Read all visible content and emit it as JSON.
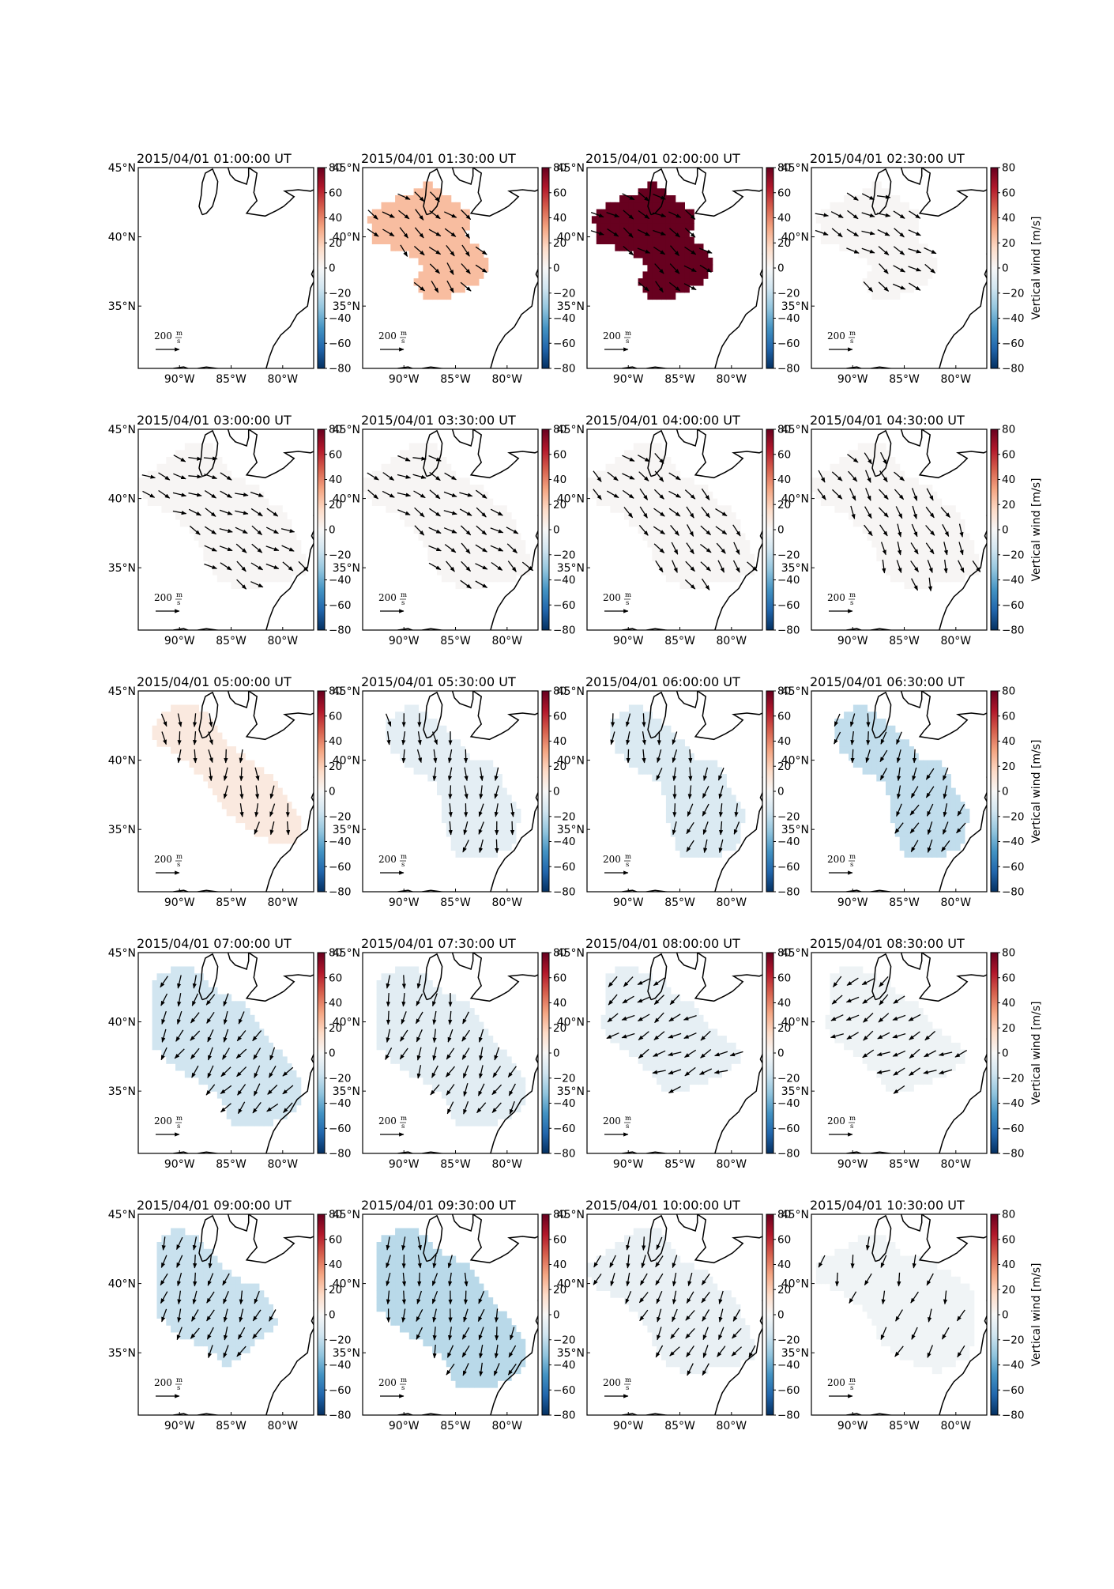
{
  "figure": {
    "lat_ticks": [
      "45°N",
      "40°N",
      "35°N"
    ],
    "lon_ticks": [
      "90°W",
      "85°W",
      "80°W"
    ],
    "colorbar_ticks": [
      "80",
      "60",
      "40",
      "20",
      "0",
      "−20",
      "−40",
      "−60",
      "−80"
    ],
    "colorbar_label": "Vertical wind [m/s]",
    "scale_label_num": "200",
    "scale_label_unit_top": "m",
    "scale_label_unit_bottom": "s",
    "colormap": [
      "#67001f",
      "#b2182b",
      "#d6604d",
      "#f4a582",
      "#fddbc7",
      "#f7f7f7",
      "#d1e5f0",
      "#92c5de",
      "#4393c3",
      "#2166ac",
      "#053061"
    ]
  },
  "chart_data": {
    "type": "map",
    "map_extent": {
      "lon": [
        -94,
        -77
      ],
      "lat": [
        30.5,
        45
      ]
    },
    "colorbar_range": [
      -80,
      80
    ],
    "panels": [
      {
        "title": "2015/04/01 01:00:00 UT",
        "field_value": null,
        "wind_dir": 0,
        "region": "none"
      },
      {
        "title": "2015/04/01 01:30:00 UT",
        "field_value": 25,
        "wind_dir": 45,
        "region": "early"
      },
      {
        "title": "2015/04/01 02:00:00 UT",
        "field_value": 85,
        "wind_dir": 35,
        "region": "early"
      },
      {
        "title": "2015/04/01 02:30:00 UT",
        "field_value": 1,
        "wind_dir": 30,
        "region": "early"
      },
      {
        "title": "2015/04/01 03:00:00 UT",
        "field_value": 1,
        "wind_dir": 25,
        "region": "wide"
      },
      {
        "title": "2015/04/01 03:30:00 UT",
        "field_value": 1,
        "wind_dir": 30,
        "region": "wide"
      },
      {
        "title": "2015/04/01 04:00:00 UT",
        "field_value": 1,
        "wind_dir": 45,
        "region": "wide"
      },
      {
        "title": "2015/04/01 04:30:00 UT",
        "field_value": 1,
        "wind_dir": 60,
        "region": "wide"
      },
      {
        "title": "2015/04/01 05:00:00 UT",
        "field_value": 8,
        "wind_dir": 90,
        "region": "diagonal"
      },
      {
        "title": "2015/04/01 05:30:00 UT",
        "field_value": -8,
        "wind_dir": 90,
        "region": "mid"
      },
      {
        "title": "2015/04/01 06:00:00 UT",
        "field_value": -12,
        "wind_dir": 100,
        "region": "mid"
      },
      {
        "title": "2015/04/01 06:30:00 UT",
        "field_value": -20,
        "wind_dir": 110,
        "region": "mid"
      },
      {
        "title": "2015/04/01 07:00:00 UT",
        "field_value": -16,
        "wind_dir": 120,
        "region": "large"
      },
      {
        "title": "2015/04/01 07:30:00 UT",
        "field_value": -9,
        "wind_dir": 110,
        "region": "large"
      },
      {
        "title": "2015/04/01 08:00:00 UT",
        "field_value": -7,
        "wind_dir": 150,
        "region": "late"
      },
      {
        "title": "2015/04/01 08:30:00 UT",
        "field_value": -4,
        "wind_dir": 150,
        "region": "late"
      },
      {
        "title": "2015/04/01 09:00:00 UT",
        "field_value": -18,
        "wind_dir": 110,
        "region": "compact"
      },
      {
        "title": "2015/04/01 09:30:00 UT",
        "field_value": -22,
        "wind_dir": 100,
        "region": "large"
      },
      {
        "title": "2015/04/01 10:00:00 UT",
        "field_value": -6,
        "wind_dir": 115,
        "region": "wide"
      },
      {
        "title": "2015/04/01 10:30:00 UT",
        "field_value": -3,
        "wind_dir": 110,
        "region": "wide_sparse"
      }
    ]
  }
}
